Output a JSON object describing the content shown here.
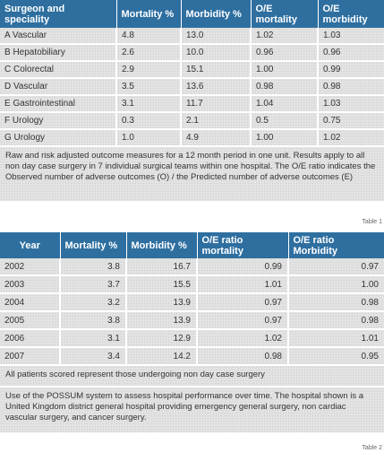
{
  "table1": {
    "headers": [
      "Surgeon and speciality",
      "Mortality %",
      "Morbidity %",
      "O/E mortality",
      "O/E morbidity"
    ],
    "rows": [
      [
        "A Vascular",
        "4.8",
        "13.0",
        "1.02",
        "1.03"
      ],
      [
        "B Hepatobiliary",
        "2.6",
        "10.0",
        "0.96",
        "0.96"
      ],
      [
        "C Colorectal",
        "2.9",
        "15.1",
        "1.00",
        "0.99"
      ],
      [
        "D Vascular",
        "3.5",
        "13.6",
        "0.98",
        "0.98"
      ],
      [
        "E Gastrointestinal",
        "3.1",
        "11.7",
        "1.04",
        "1.03"
      ],
      [
        "F Urology",
        "0.3",
        "2.1",
        "0.5",
        "0.75"
      ],
      [
        "G Urology",
        "1.0",
        "4.9",
        "1.00",
        "1.02"
      ]
    ],
    "note": "Raw and risk adjusted outcome measures for a 12 month period in one unit. Results apply to all non day case surgery in 7 individual surgical teams within one hospital. The O/E ratio indicates the Observed number of adverse outcomes (O) / the Predicted number of adverse outcomes (E)",
    "caption": "Table 1"
  },
  "table2": {
    "headers": [
      "Year",
      "Mortality %",
      "Morbidity %",
      "O/E ratio mortality",
      "O/E ratio Morbidity"
    ],
    "rows": [
      [
        "2002",
        "3.8",
        "16.7",
        "0.99",
        "0.97"
      ],
      [
        "2003",
        "3.7",
        "15.5",
        "1.01",
        "1.00"
      ],
      [
        "2004",
        "3.2",
        "13.9",
        "0.97",
        "0.98"
      ],
      [
        "2005",
        "3.8",
        "13.9",
        "0.97",
        "0.98"
      ],
      [
        "2006",
        "3.1",
        "12.9",
        "1.02",
        "1.01"
      ],
      [
        "2007",
        "3.4",
        "14.2",
        "0.98",
        "0.95"
      ]
    ],
    "note1": "All patients scored represent those undergoing non day case surgery",
    "note2": "Use of the POSSUM system to assess hospital performance over time. The hospital shown is a United Kingdom district general hospital providing emergency general surgery, non cardiac vascular surgery, and cancer surgery.",
    "caption": "Table 2"
  }
}
